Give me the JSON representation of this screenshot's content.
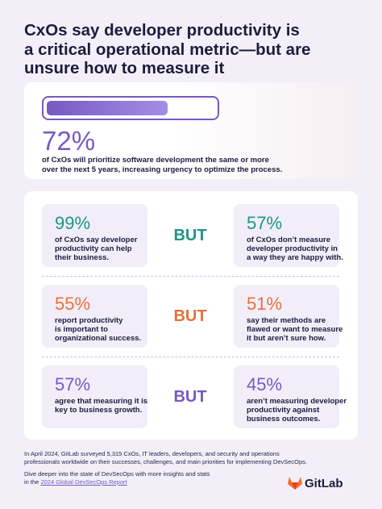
{
  "title": [
    "CxOs say developer productivity is",
    "a critical operational metric—but are",
    "unsure how to measure it"
  ],
  "highlight": {
    "stat": {
      "value": 72,
      "label": "72%"
    },
    "text": [
      "of CxOs will prioritize software development the same or more",
      "over the next 5 years, increasing urgency to optimize the process."
    ]
  },
  "comparisons": [
    {
      "left": {
        "stat": "99%",
        "text": [
          "of CxOs say developer",
          "productivity can help",
          "their business."
        ]
      },
      "connector": "BUT",
      "right": {
        "stat": "57%",
        "text": [
          "of CxOs don’t measure",
          "developer productivity in",
          "a way they are happy with."
        ]
      }
    },
    {
      "left": {
        "stat": "55%",
        "text": [
          "report productivity",
          "is important to",
          "organizational success."
        ]
      },
      "connector": "BUT",
      "right": {
        "stat": "51%",
        "text": [
          "say their methods are",
          "flawed or want to measure",
          "it but aren’t sure how."
        ]
      }
    },
    {
      "left": {
        "stat": "57%",
        "text": [
          "agree that measuring it is",
          "key to business growth."
        ]
      },
      "connector": "BUT",
      "right": {
        "stat": "45%",
        "text": [
          "aren’t measuring developer",
          "productivity against",
          "business outcomes."
        ]
      }
    }
  ],
  "footer": {
    "survey": [
      "In April 2024, GitLab surveyed 5,315 CxOs, IT leaders, developers, and security and operations",
      "professionals worldwide on their successes, challenges, and main priorities for implementing DevSecOps."
    ],
    "cta": [
      "Dive deeper into the state of DevSecOps with more insights and stats",
      "in the"
    ],
    "link": "2024 Global DevSecOps Report"
  },
  "logo": "GitLab"
}
